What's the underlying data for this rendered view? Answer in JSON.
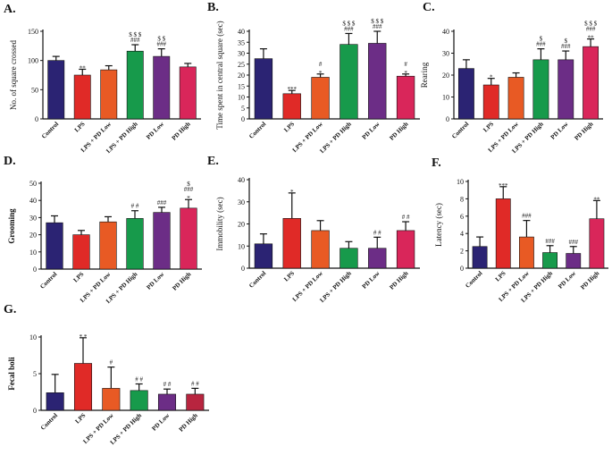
{
  "colors": {
    "Control": "#2b2373",
    "LPS": "#e02a27",
    "LPS + PD Low": "#e85a24",
    "LPS + PD High": "#179a4b",
    "PD Low": "#6c2d86",
    "PD High": "#d9265a",
    "PD High (G)": "#b8253f"
  },
  "chart_data": [
    {
      "type": "bar",
      "panel": "A.",
      "title": "",
      "xlabel": "",
      "ylabel": "No. of square crossed",
      "ylim": [
        0,
        150
      ],
      "yticks": [
        0,
        50,
        100,
        150
      ],
      "categories": [
        "Control",
        "LPS",
        "LPS + PD Low",
        "LPS + PD High",
        "PD Low",
        "PD High"
      ],
      "values": [
        100,
        75,
        84,
        116,
        107,
        89
      ],
      "errors": [
        7,
        10,
        7,
        11,
        13,
        6
      ],
      "annotations": [
        [],
        [
          "**"
        ],
        [],
        [
          "###",
          "$ $ $"
        ],
        [
          "###",
          "$ $"
        ],
        []
      ]
    },
    {
      "type": "bar",
      "panel": "B.",
      "title": "",
      "xlabel": "",
      "ylabel": "Time spent in central square (sec)",
      "ylim": [
        0,
        40
      ],
      "yticks": [
        0,
        5,
        10,
        15,
        20,
        25,
        30,
        35,
        40
      ],
      "categories": [
        "Control",
        "LPS",
        "LPS + PD Low",
        "LPS + PD High",
        "PD Low",
        "PD High"
      ],
      "values": [
        27.5,
        11.5,
        19,
        34,
        34.5,
        19.5
      ],
      "errors": [
        4.5,
        1.5,
        1.5,
        5,
        5.5,
        1
      ],
      "annotations": [
        [],
        [
          "***"
        ],
        [
          "*",
          "#"
        ],
        [
          "###",
          "$ $ $"
        ],
        [
          "###",
          "$ $ $"
        ],
        [
          "*",
          "#"
        ]
      ]
    },
    {
      "type": "bar",
      "panel": "C.",
      "title": "",
      "xlabel": "",
      "ylabel": "Rearing",
      "ylim": [
        0,
        40
      ],
      "yticks": [
        0,
        10,
        20,
        30,
        40
      ],
      "categories": [
        "Control",
        "LPS",
        "LPS + PD Low",
        "LPS + PD High",
        "PD Low",
        "PD High"
      ],
      "values": [
        23,
        15.5,
        19,
        27,
        27,
        33
      ],
      "errors": [
        4,
        3,
        2,
        5,
        4,
        3.5
      ],
      "annotations": [
        [],
        [
          "*"
        ],
        [],
        [
          "###",
          "$"
        ],
        [
          "###",
          "$"
        ],
        [
          "**",
          "###",
          "$ $ $"
        ]
      ]
    },
    {
      "type": "bar",
      "panel": "D.",
      "title": "",
      "xlabel": "",
      "ylabel": "Grooming",
      "ylim": [
        0,
        50
      ],
      "yticks": [
        0,
        10,
        20,
        30,
        40,
        50
      ],
      "categories": [
        "Control",
        "LPS",
        "LPS + PD Low",
        "LPS + PD High",
        "PD Low",
        "PD High"
      ],
      "values": [
        27,
        20,
        27.5,
        29.5,
        33,
        35.5
      ],
      "errors": [
        4,
        2.5,
        3,
        4.5,
        3,
        5
      ],
      "annotations": [
        [],
        [],
        [],
        [
          "# #"
        ],
        [
          "###"
        ],
        [
          "*",
          "###",
          "$"
        ]
      ]
    },
    {
      "type": "bar",
      "panel": "E.",
      "title": "",
      "xlabel": "",
      "ylabel": "Immobility (sec)",
      "ylim": [
        0,
        40
      ],
      "yticks": [
        0,
        10,
        20,
        30,
        40
      ],
      "categories": [
        "Control",
        "LPS",
        "LPS + PD Low",
        "LPS + PD High",
        "PD Low",
        "PD High"
      ],
      "values": [
        11,
        22.5,
        17,
        9,
        9,
        17
      ],
      "errors": [
        4.5,
        11.5,
        4.5,
        3,
        5,
        4
      ],
      "annotations": [
        [],
        [
          "*"
        ],
        [],
        [],
        [
          "# #"
        ],
        [
          "# #"
        ]
      ]
    },
    {
      "type": "bar",
      "panel": "F.",
      "title": "",
      "xlabel": "",
      "ylabel": "Latency (sec)",
      "ylim": [
        0,
        10
      ],
      "yticks": [
        0,
        2,
        4,
        6,
        8,
        10
      ],
      "categories": [
        "Control",
        "LPS",
        "LPS + PD Low",
        "LPS + PD High",
        "PD Low",
        "PD High"
      ],
      "values": [
        2.5,
        8,
        3.6,
        1.8,
        1.7,
        5.7
      ],
      "errors": [
        1.1,
        1.4,
        1.9,
        0.8,
        0.8,
        2.1
      ],
      "annotations": [
        [],
        [
          "***"
        ],
        [
          "###"
        ],
        [
          "###"
        ],
        [
          "###"
        ],
        [
          "**"
        ]
      ]
    },
    {
      "type": "bar",
      "panel": "G.",
      "title": "",
      "xlabel": "",
      "ylabel": "Fecal boli",
      "ylim": [
        0,
        10
      ],
      "yticks": [
        0,
        5,
        10
      ],
      "categories": [
        "Control",
        "LPS",
        "LPS + PD Low",
        "LPS + PD High",
        "PD Low",
        "PD High"
      ],
      "values": [
        2.4,
        6.4,
        3.0,
        2.7,
        2.2,
        2.2
      ],
      "errors": [
        2.5,
        3.5,
        2.9,
        0.9,
        0.7,
        0.8
      ],
      "annotations": [
        [],
        [
          "* *"
        ],
        [
          "#"
        ],
        [
          "# #"
        ],
        [
          "# #"
        ],
        [
          "# #"
        ]
      ]
    }
  ]
}
